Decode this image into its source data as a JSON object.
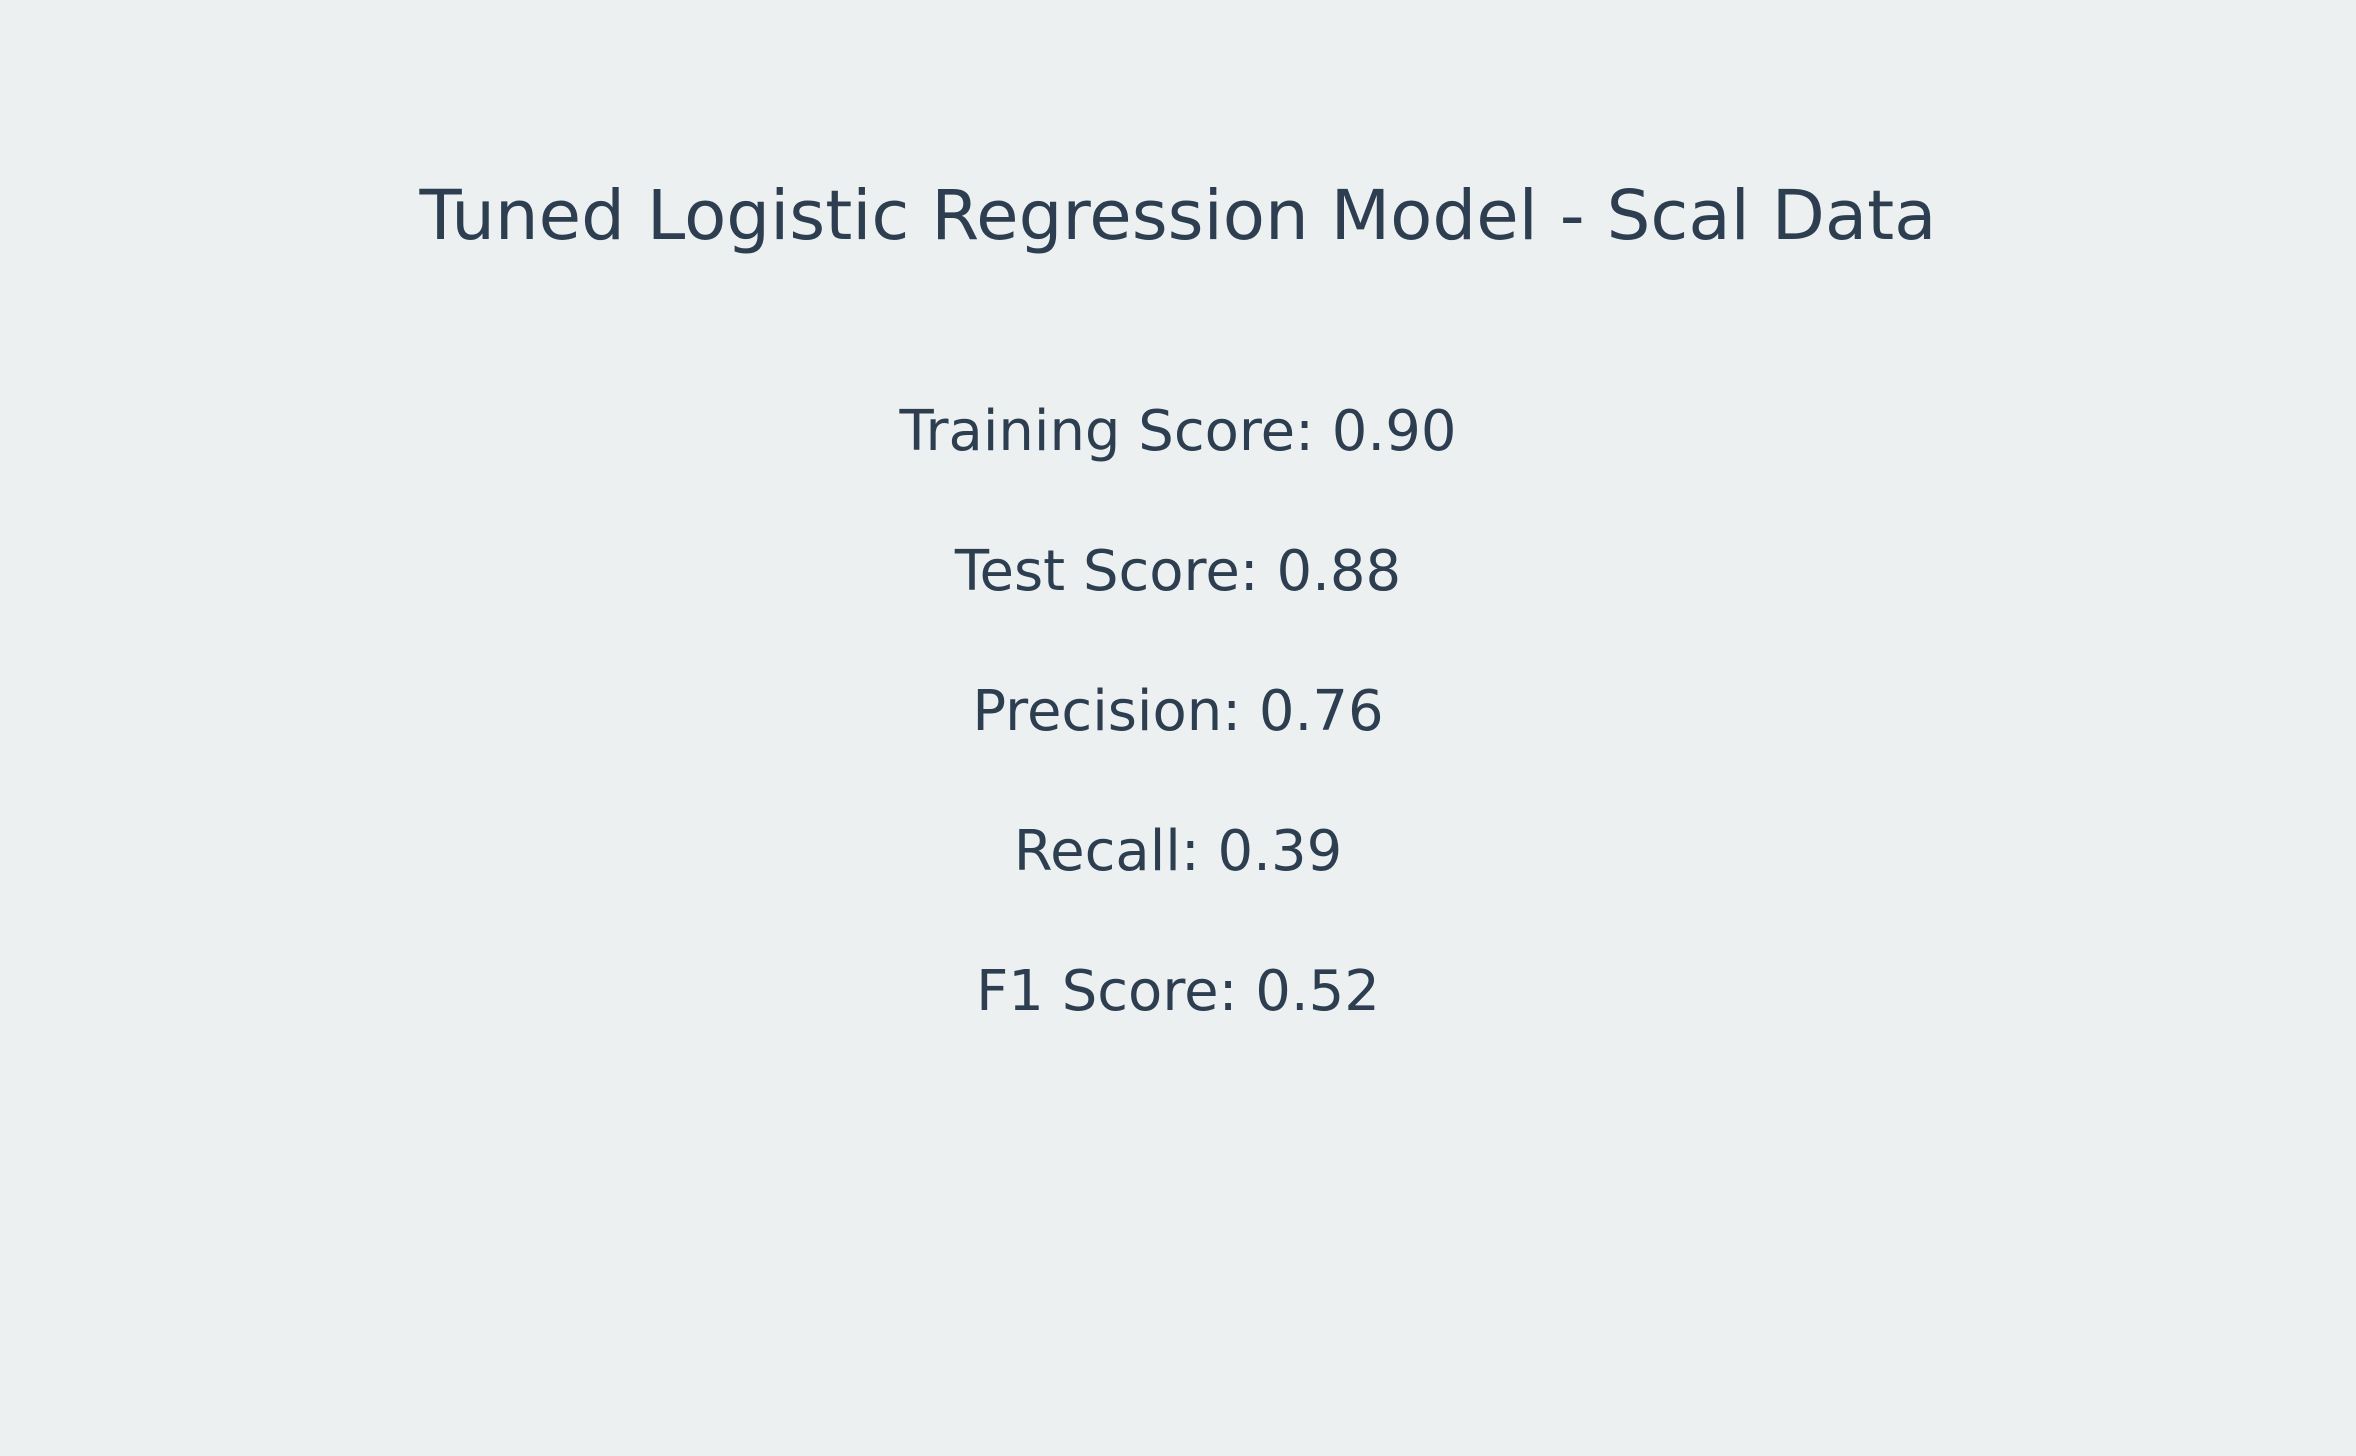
{
  "title": "Tuned Logistic Regression Model - Scal Data",
  "metrics": [
    {
      "label": "Training Score: 0.90"
    },
    {
      "label": "Test Score: 0.88"
    },
    {
      "label": "Precision: 0.76"
    },
    {
      "label": "Recall: 0.39"
    },
    {
      "label": "F1 Score: 0.52"
    }
  ],
  "colors": {
    "background": "#ecf0f1",
    "text": "#2c3e50"
  }
}
